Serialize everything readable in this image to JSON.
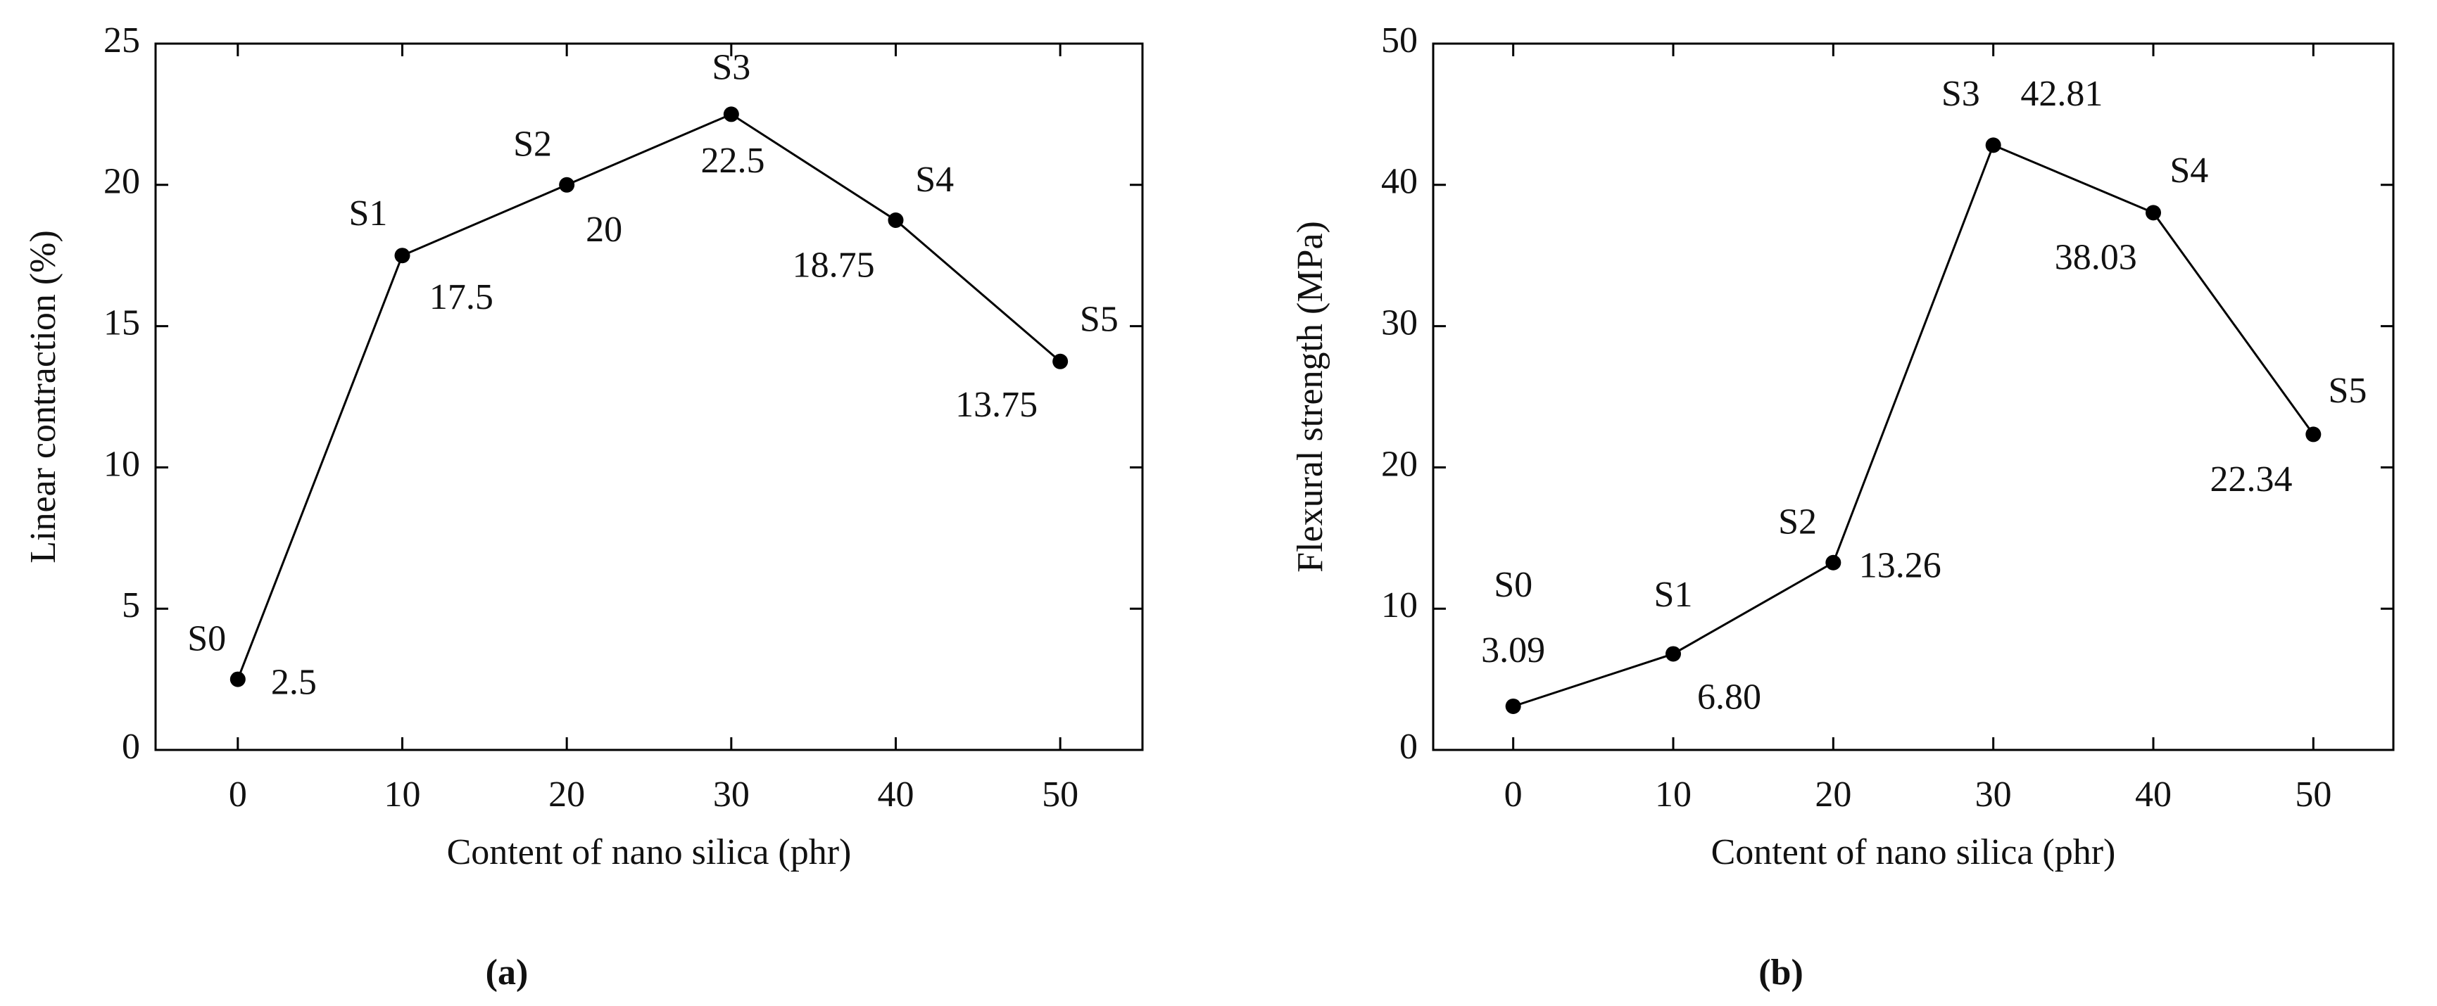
{
  "chart_data": [
    {
      "type": "line",
      "x": [
        0,
        10,
        20,
        30,
        40,
        50
      ],
      "series": [
        {
          "color": "#000000",
          "values": [
            2.5,
            17.5,
            20,
            22.5,
            18.75,
            13.75
          ]
        }
      ],
      "point_labels": [
        "S0",
        "S1",
        "S2",
        "S3",
        "S4",
        "S5"
      ],
      "xlabel": "Content of nano silica (phr)",
      "ylabel": "Linear contraction (%)",
      "xlim": [
        -5,
        55
      ],
      "xticks": [
        0,
        10,
        20,
        30,
        40,
        50
      ],
      "ylim": [
        0,
        25
      ],
      "yticks": [
        0,
        5,
        10,
        15,
        20,
        25
      ],
      "caption": "(a)"
    },
    {
      "type": "line",
      "x": [
        0,
        10,
        20,
        30,
        40,
        50
      ],
      "series": [
        {
          "color": "#000000",
          "values": [
            3.09,
            6.8,
            13.26,
            42.81,
            38.03,
            22.34
          ],
          "value_labels": [
            "3.09",
            "6.80",
            "13.26",
            "42.81",
            "38.03",
            "22.34"
          ]
        }
      ],
      "point_labels": [
        "S0",
        "S1",
        "S2",
        "S3",
        "S4",
        "S5"
      ],
      "xlabel": "Content of nano silica (phr)",
      "ylabel": "Flexural strength (MPa)",
      "xlim": [
        -5,
        55
      ],
      "xticks": [
        0,
        10,
        20,
        30,
        40,
        50
      ],
      "ylim": [
        0,
        50
      ],
      "yticks": [
        0,
        10,
        20,
        30,
        40,
        50
      ],
      "caption": "(b)"
    }
  ]
}
